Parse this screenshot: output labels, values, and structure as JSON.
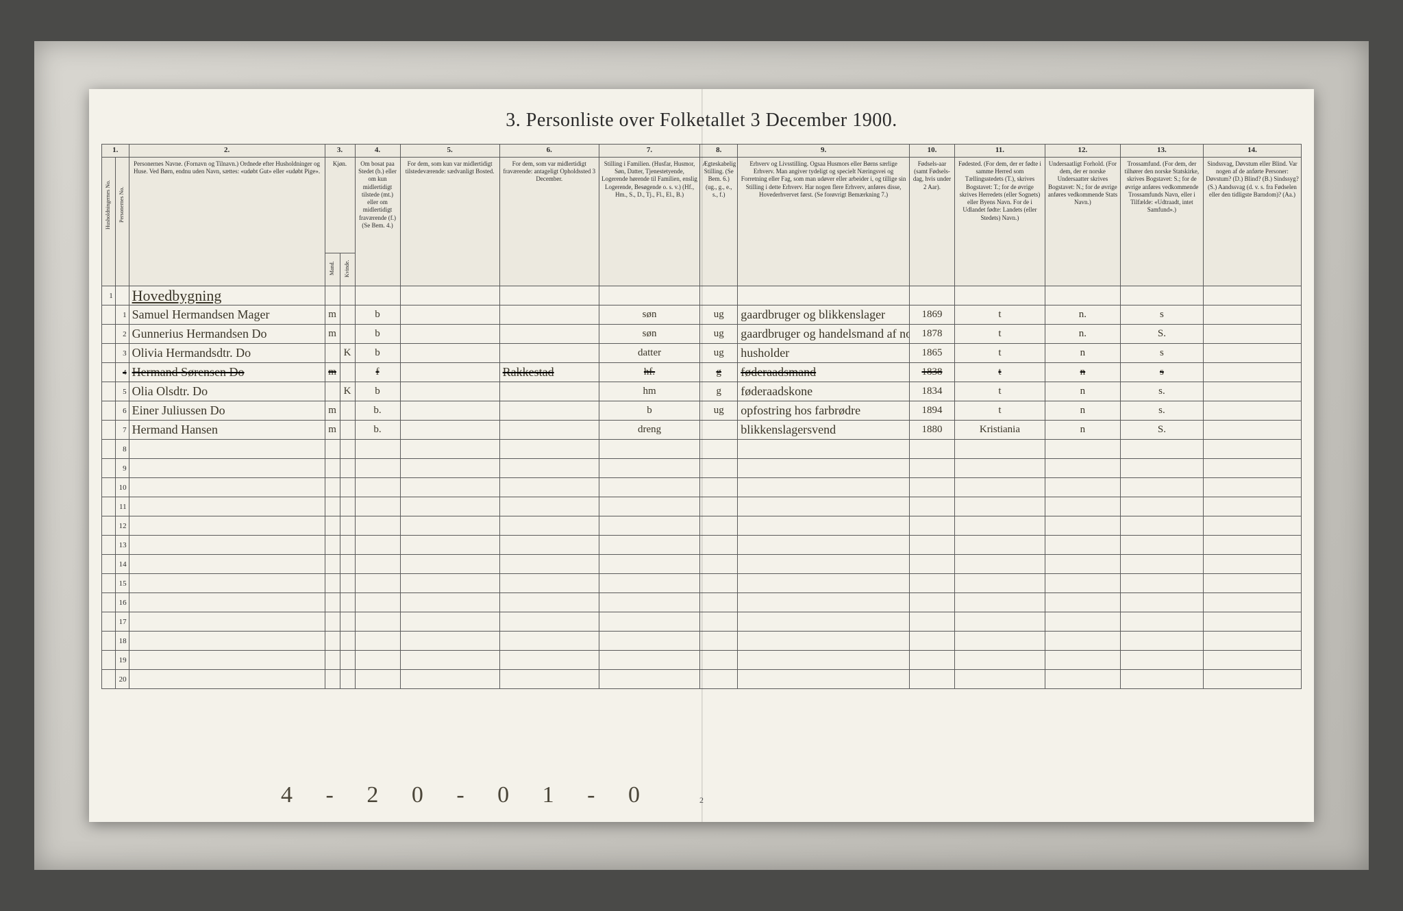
{
  "title": "3. Personliste over Folketallet 3 December 1900.",
  "page_number": "2",
  "footer_annotation": "4 - 2   0 - 0   1 - 0",
  "colors": {
    "paper": "#f4f2ea",
    "ink_print": "#2a2a2a",
    "ink_hand": "#3a3528",
    "border": "#5a5a5a",
    "frame_bg": "#c8c6c0",
    "outer_bg": "#4a4a48"
  },
  "columns": {
    "nums": [
      "1.",
      "2.",
      "3.",
      "4.",
      "5.",
      "6.",
      "7.",
      "8.",
      "9.",
      "10.",
      "11.",
      "12.",
      "13.",
      "14."
    ],
    "headers": {
      "hh": "Husholdningernes No.",
      "pn": "Personernes No.",
      "name": "Personernes Navne.\n(Fornavn og Tilnavn.)\nOrdnede efter Husholdninger og Huse.\nVed Børn, endnu uden Navn, sættes: «udøbt Gut» eller «udøbt Pige».",
      "sex": "Kjøn.",
      "sex_m": "Mand.",
      "sex_k": "Kvinde.",
      "res": "Om bosat paa Stedet (b.) eller om kun midlertidigt tilstede (mt.) eller om midlertidigt fraværende (f.)\n(Se Bem. 4.)",
      "usual": "For dem, som kun var midlertidigt tilstedeværende:\nsædvanligt Bosted.",
      "temp": "For dem, som var midlertidigt fraværende:\nantageligt Opholdssted 3 December.",
      "pos": "Stilling i Familien.\n(Husfar, Husmor, Søn, Datter, Tjenestetyende, Logerende hørende til Familien, enslig Logerende, Besøgende o. s. v.)\n(Hf., Hm., S., D., Tj., Fl., El., B.)",
      "mar": "Ægteskabelig Stilling.\n(Se Bem. 6.)\n(ug., g., e., s., f.)",
      "occ": "Erhverv og Livsstilling.\nOgsaa Husmors eller Børns særlige Erhverv. Man angiver tydeligt og specielt Næringsvei og Forretning eller Fag, som man udøver eller arbeider i, og tillige sin Stilling i dette Erhverv. Har nogen flere Erhverv, anføres disse, Hovederhvervet først.\n(Se forøvrigt Bemærkning 7.)",
      "year": "Fødsels-aar\n(samt Fødsels-dag, hvis under 2 Aar).",
      "birthpl": "Fødested.\n(For dem, der er fødte i samme Herred som Tællingsstedets (T.), skrives Bogstavet: T.; for de øvrige skrives Herredets (eller Sognets) eller Byens Navn. For de i Udlandet fødte: Landets (eller Stedets) Navn.)",
      "cit": "Undersaatligt Forhold.\n(For dem, der er norske Undersaatter skrives Bogstavet: N.; for de øvrige anføres vedkommende Stats Navn.)",
      "rel": "Trossamfund.\n(For dem, der tilhører den norske Statskirke, skrives Bogstavet: S.; for de øvrige anføres vedkommende Trossamfunds Navn, eller i Tilfælde: «Udtraadt, intet Samfund».)",
      "dis": "Sindssvag, Døvstum eller Blind.\nVar nogen af de anførte Personer:\nDøvstum? (D.)\nBlind? (B.)\nSindssyg? (S.)\nAandssvag (d. v. s. fra Fødselen eller den tidligste Barndom)? (Aa.)"
    }
  },
  "heading_row": "Hovedbygning",
  "rows": [
    {
      "n": "1",
      "name": "Samuel Hermandsen Mager",
      "do": "",
      "m": "m",
      "k": "",
      "b": "b",
      "usual": "",
      "temp": "",
      "pos": "søn",
      "mar": "ug",
      "occ": "gaardbruger og blikkenslager",
      "year": "1869",
      "birthpl": "t",
      "cit": "n.",
      "rel": "s",
      "dis": ""
    },
    {
      "n": "2",
      "name": "Gunnerius Hermandsen",
      "do": "Do",
      "m": "m",
      "k": "",
      "b": "b",
      "usual": "",
      "temp": "",
      "pos": "søn",
      "mar": "ug",
      "occ": "gaardbruger og handelsmand af norsk industrivarer blik",
      "year": "1878",
      "birthpl": "t",
      "cit": "n.",
      "rel": "S.",
      "dis": ""
    },
    {
      "n": "3",
      "name": "Olivia Hermandsdtr.",
      "do": "Do",
      "m": "",
      "k": "K",
      "b": "b",
      "usual": "",
      "temp": "",
      "pos": "datter",
      "mar": "ug",
      "occ": "husholder",
      "year": "1865",
      "birthpl": "t",
      "cit": "n",
      "rel": "s",
      "dis": ""
    },
    {
      "n": "4",
      "name": "Hermand Sørensen",
      "do": "Do",
      "m": "m",
      "k": "",
      "b": "f",
      "usual": "",
      "temp": "Rakkestad",
      "pos": "hf.",
      "mar": "g",
      "occ": "føderaadsmand",
      "year": "1838",
      "birthpl": "t",
      "cit": "n",
      "rel": "s",
      "dis": "",
      "strike": true
    },
    {
      "n": "5",
      "name": "Olia Olsdtr.",
      "do": "Do",
      "m": "",
      "k": "K",
      "b": "b",
      "usual": "",
      "temp": "",
      "pos": "hm",
      "mar": "g",
      "occ": "føderaadskone",
      "year": "1834",
      "birthpl": "t",
      "cit": "n",
      "rel": "s.",
      "dis": ""
    },
    {
      "n": "6",
      "name": "Einer Juliussen",
      "do": "Do",
      "m": "m",
      "k": "",
      "b": "b.",
      "usual": "",
      "temp": "",
      "pos": "b",
      "mar": "ug",
      "occ": "opfostring hos farbrødre",
      "year": "1894",
      "birthpl": "t",
      "cit": "n",
      "rel": "s.",
      "dis": ""
    },
    {
      "n": "7",
      "name": "Hermand Hansen",
      "do": "",
      "m": "m",
      "k": "",
      "b": "b.",
      "usual": "",
      "temp": "",
      "pos": "dreng",
      "mar": "",
      "occ": "blikkenslagersvend",
      "year": "1880",
      "birthpl": "Kristiania",
      "cit": "n",
      "rel": "S.",
      "dis": ""
    }
  ],
  "empty_rows_start": 8,
  "empty_rows_end": 20
}
